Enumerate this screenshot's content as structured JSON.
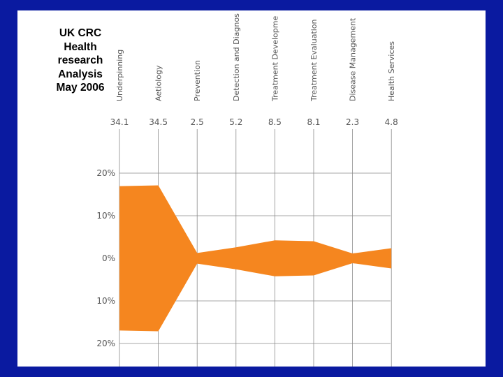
{
  "slide": {
    "title_lines": [
      "UK CRC",
      "Health",
      "research",
      "Analysis",
      "May 2006"
    ]
  },
  "colors": {
    "background": "#0a1aa0",
    "panel": "#ffffff",
    "area_fill": "#f5861f",
    "grid": "#8a8a8a",
    "label_text": "#555555"
  },
  "chart_data": {
    "type": "area",
    "style": "symmetric-band",
    "categories": [
      "Underpinning",
      "Aetiology",
      "Prevention",
      "Detection and Diagnosis",
      "Treatment Development",
      "Treatment Evaluation",
      "Disease Management",
      "Health Services"
    ],
    "category_labels_visible": [
      "Underpinning",
      "Aetiology",
      "Prevention",
      "Detection and Diagnos",
      "Treatment Developme",
      "Treatment Evaluation",
      "Disease Management",
      "Health Services"
    ],
    "value_labels": [
      "34.1",
      "34.5",
      "2.5",
      "5.2",
      "8.5",
      "8.1",
      "2.3",
      "4.8"
    ],
    "values": [
      34.1,
      34.5,
      2.5,
      5.2,
      8.5,
      8.1,
      2.3,
      4.8
    ],
    "y_tick_labels": [
      "20%",
      "10%",
      "0%",
      "10%",
      "20%"
    ],
    "y_ticks": [
      20,
      10,
      0,
      -10,
      -20
    ],
    "ylim": [
      -20,
      20
    ],
    "grid": true
  }
}
